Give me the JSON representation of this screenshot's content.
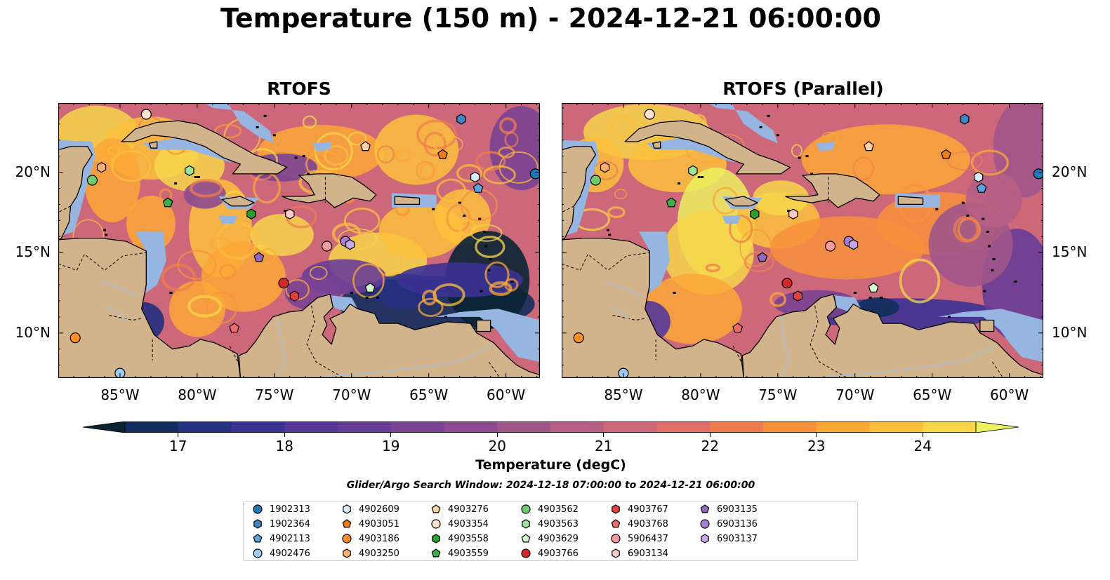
{
  "title": "Temperature (150 m) - 2024-12-21 06:00:00",
  "panels": [
    {
      "id": "left",
      "title": "RTOFS"
    },
    {
      "id": "right",
      "title": "RTOFS (Parallel)"
    }
  ],
  "map": {
    "lon_range": [
      -89,
      -57.8
    ],
    "lat_range": [
      7.2,
      24.3
    ],
    "lon_ticks": [
      "85°W",
      "80°W",
      "75°W",
      "70°W",
      "65°W",
      "60°W"
    ],
    "lat_ticks": [
      "20°N",
      "15°N",
      "10°N"
    ],
    "colors": {
      "land": "#d2b48c",
      "shelf": "#96b5e0",
      "deep_cold": "#0a2434"
    }
  },
  "colorbar": {
    "label": "Temperature (degC)",
    "ticks": [
      "17",
      "18",
      "19",
      "20",
      "21",
      "22",
      "23",
      "24"
    ],
    "range": [
      16.5,
      24.5
    ],
    "colors": [
      "#0a2434",
      "#122d5c",
      "#25307f",
      "#3c3294",
      "#553798",
      "#683d97",
      "#7a4394",
      "#8c4b90",
      "#a0558a",
      "#b65f84",
      "#cd687b",
      "#e06f68",
      "#ef7c4f",
      "#f7913c",
      "#fba837",
      "#fbbf3c",
      "#f7d64a",
      "#ecf160"
    ]
  },
  "search_window": "Glider/Argo Search Window: 2024-12-18 07:00:00 to 2024-12-21 06:00:00",
  "legend": [
    {
      "id": "1902313",
      "color": "#1f77b4",
      "marker": "circle"
    },
    {
      "id": "1902364",
      "color": "#3f86c6",
      "marker": "hexagon"
    },
    {
      "id": "4902113",
      "color": "#5aa3de",
      "marker": "pentagon"
    },
    {
      "id": "4902476",
      "color": "#9fcaef",
      "marker": "circle"
    },
    {
      "id": "4902609",
      "color": "#d6ecfb",
      "marker": "hexagon"
    },
    {
      "id": "4903051",
      "color": "#f07d12",
      "marker": "pentagon"
    },
    {
      "id": "4903186",
      "color": "#ff8c26",
      "marker": "circle"
    },
    {
      "id": "4903250",
      "color": "#ffae6b",
      "marker": "hexagon"
    },
    {
      "id": "4903276",
      "color": "#ffd0a0",
      "marker": "pentagon"
    },
    {
      "id": "4903354",
      "color": "#ffe4cb",
      "marker": "circle"
    },
    {
      "id": "4903558",
      "color": "#2ca02c",
      "marker": "hexagon"
    },
    {
      "id": "4903559",
      "color": "#3cb044",
      "marker": "pentagon"
    },
    {
      "id": "4903562",
      "color": "#6fcc6c",
      "marker": "circle"
    },
    {
      "id": "4903563",
      "color": "#9fe39b",
      "marker": "hexagon"
    },
    {
      "id": "4903629",
      "color": "#d5f7cf",
      "marker": "pentagon"
    },
    {
      "id": "4903766",
      "color": "#d62728",
      "marker": "circle"
    },
    {
      "id": "4903767",
      "color": "#e23f3f",
      "marker": "hexagon"
    },
    {
      "id": "4903768",
      "color": "#ee6b6b",
      "marker": "pentagon"
    },
    {
      "id": "5906437",
      "color": "#f59b9b",
      "marker": "circle"
    },
    {
      "id": "6903134",
      "color": "#fccaca",
      "marker": "hexagon"
    },
    {
      "id": "6903135",
      "color": "#9467bd",
      "marker": "pentagon"
    },
    {
      "id": "6903136",
      "color": "#a97fd0",
      "marker": "circle"
    },
    {
      "id": "6903137",
      "color": "#c7a6ec",
      "marker": "hexagon"
    }
  ],
  "floats": [
    {
      "id": "1902313",
      "lon": -58.1,
      "lat": 19.9
    },
    {
      "id": "1902364",
      "lon": -62.9,
      "lat": 23.3
    },
    {
      "id": "4902113",
      "lon": -61.8,
      "lat": 19.0
    },
    {
      "id": "4902476",
      "lon": -85.0,
      "lat": 7.5
    },
    {
      "id": "4902609",
      "lon": -62.0,
      "lat": 19.7
    },
    {
      "id": "4903051",
      "lon": -64.1,
      "lat": 21.1
    },
    {
      "id": "4903186",
      "lon": -87.9,
      "lat": 9.7
    },
    {
      "id": "4903250",
      "lon": -86.2,
      "lat": 20.3
    },
    {
      "id": "4903276",
      "lon": -69.1,
      "lat": 21.6
    },
    {
      "id": "4903354",
      "lon": -83.3,
      "lat": 23.6
    },
    {
      "id": "4903558",
      "lon": -76.5,
      "lat": 17.4
    },
    {
      "id": "4903559",
      "lon": -81.9,
      "lat": 18.1
    },
    {
      "id": "4903562",
      "lon": -86.8,
      "lat": 19.5
    },
    {
      "id": "4903563",
      "lon": -80.5,
      "lat": 20.1
    },
    {
      "id": "4903629",
      "lon": -68.8,
      "lat": 12.8
    },
    {
      "id": "4903766",
      "lon": -74.4,
      "lat": 13.1
    },
    {
      "id": "4903767",
      "lon": -73.7,
      "lat": 12.3
    },
    {
      "id": "4903768",
      "lon": -77.6,
      "lat": 10.3
    },
    {
      "id": "5906437",
      "lon": -71.6,
      "lat": 15.4
    },
    {
      "id": "6903134",
      "lon": -74.0,
      "lat": 17.4
    },
    {
      "id": "6903135",
      "lon": -76.0,
      "lat": 14.7
    },
    {
      "id": "6903136",
      "lon": -70.4,
      "lat": 15.7
    },
    {
      "id": "6903137",
      "lon": -70.1,
      "lat": 15.5
    }
  ]
}
